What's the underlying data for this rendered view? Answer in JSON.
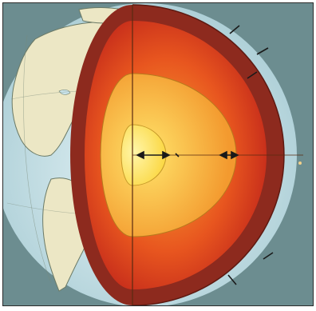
{
  "diagram": {
    "caption": "",
    "colors": {
      "background": "#6e8f92",
      "ocean": "#c9e3ea",
      "land": "#ece9c9",
      "coastline": "#6c7a6a",
      "crust": "#8f2a1f",
      "mantle": "#d9391e",
      "outer_core": "#f39a2f",
      "inner_core": "#ffe35a",
      "marker": "#1a1a1a"
    },
    "icons": [
      "earth-globe-icon",
      "cutaway-layers-icon"
    ]
  }
}
